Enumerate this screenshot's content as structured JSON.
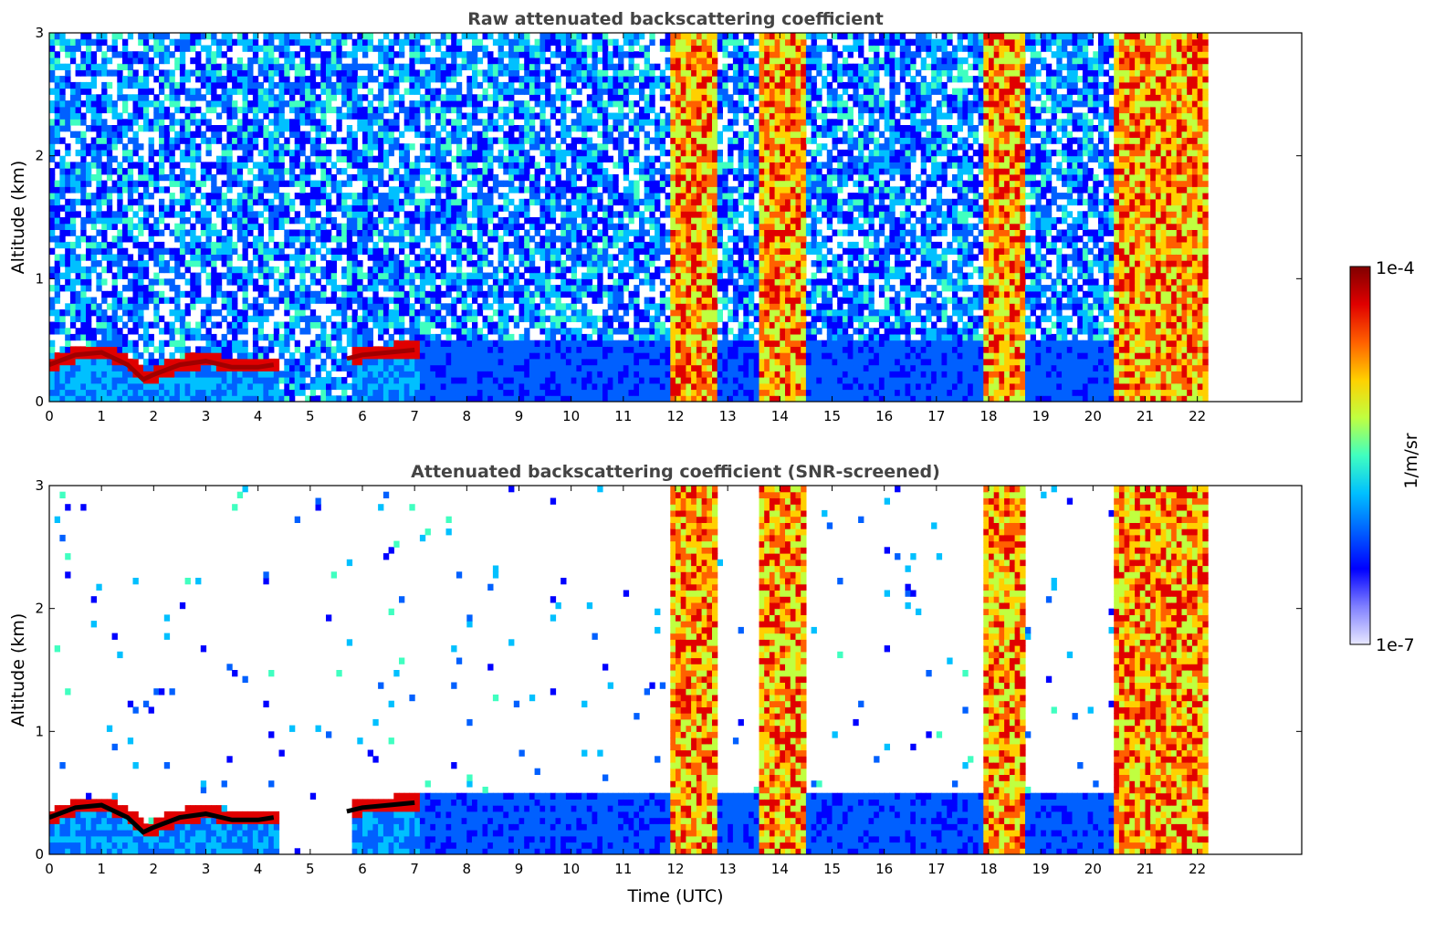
{
  "chart_data": [
    {
      "type": "heatmap",
      "title": "Raw attenuated backscattering coefficient",
      "ylabel": "Altitude (km)",
      "xlabel": "",
      "xlim": [
        0,
        24
      ],
      "ylim": [
        0,
        3
      ],
      "xticks": [
        "0",
        "1",
        "2",
        "3",
        "4",
        "5",
        "6",
        "7",
        "8",
        "9",
        "10",
        "11",
        "12",
        "13",
        "14",
        "15",
        "16",
        "17",
        "18",
        "19",
        "20",
        "21",
        "22"
      ],
      "yticks": [
        "0",
        "1",
        "2",
        "3"
      ],
      "data_end_hour": 22.2,
      "features": [
        {
          "kind": "boundary_layer_top",
          "x": [
            0,
            0.5,
            1.0,
            1.5,
            1.8,
            2.0,
            2.5,
            3.0,
            3.5,
            4.0,
            4.3
          ],
          "y": [
            0.3,
            0.38,
            0.4,
            0.3,
            0.18,
            0.22,
            0.3,
            0.33,
            0.28,
            0.28,
            0.3
          ]
        },
        {
          "kind": "boundary_layer_top",
          "x": [
            5.7,
            6.0,
            6.5,
            7.0
          ],
          "y": [
            0.35,
            0.38,
            0.4,
            0.42
          ]
        },
        {
          "kind": "dense_column",
          "x": [
            11.8,
            12.7
          ]
        },
        {
          "kind": "dense_column",
          "x": [
            13.5,
            14.4
          ]
        },
        {
          "kind": "dense_column",
          "x": [
            17.9,
            18.6
          ]
        },
        {
          "kind": "dense_column",
          "x": [
            20.3,
            22.2
          ]
        }
      ]
    },
    {
      "type": "heatmap",
      "title": "Attenuated backscattering coefficient (SNR-screened)",
      "ylabel": "Altitude (km)",
      "xlabel": "Time (UTC)",
      "xlim": [
        0,
        24
      ],
      "ylim": [
        0,
        3
      ],
      "xticks": [
        "0",
        "1",
        "2",
        "3",
        "4",
        "5",
        "6",
        "7",
        "8",
        "9",
        "10",
        "11",
        "12",
        "13",
        "14",
        "15",
        "16",
        "17",
        "18",
        "19",
        "20",
        "21",
        "22"
      ],
      "yticks": [
        "0",
        "1",
        "2",
        "3"
      ],
      "data_end_hour": 22.2,
      "features": [
        {
          "kind": "boundary_layer_top",
          "x": [
            0,
            0.5,
            1.0,
            1.5,
            1.8,
            2.0,
            2.5,
            3.0,
            3.5,
            4.0,
            4.3
          ],
          "y": [
            0.3,
            0.38,
            0.4,
            0.3,
            0.18,
            0.22,
            0.3,
            0.33,
            0.28,
            0.28,
            0.3
          ]
        },
        {
          "kind": "boundary_layer_top",
          "x": [
            5.7,
            6.0,
            6.5,
            7.0
          ],
          "y": [
            0.35,
            0.38,
            0.4,
            0.42
          ]
        },
        {
          "kind": "dense_column",
          "x": [
            11.8,
            12.7
          ]
        },
        {
          "kind": "dense_column",
          "x": [
            13.5,
            14.4
          ]
        },
        {
          "kind": "dense_column",
          "x": [
            17.9,
            18.6
          ]
        },
        {
          "kind": "dense_column",
          "x": [
            20.3,
            22.2
          ]
        }
      ]
    }
  ],
  "colorbar": {
    "label": "1/m/sr",
    "min_label": "1e-7",
    "max_label": "1e-4",
    "scale": "log",
    "colors": [
      "#e8e8ff",
      "#8080ff",
      "#0000ff",
      "#0060ff",
      "#00c0ff",
      "#40ffc0",
      "#c0ff40",
      "#ffd000",
      "#ff6000",
      "#e00000",
      "#800000"
    ]
  }
}
